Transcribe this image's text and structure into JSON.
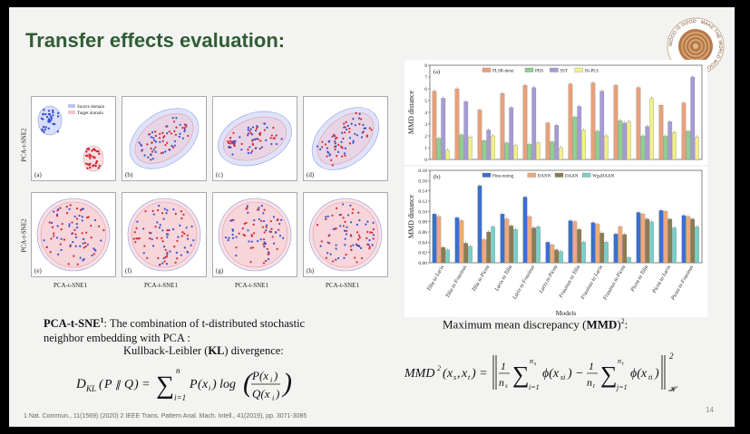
{
  "slide": {
    "title": "Transfer effects evaluation:",
    "page_number": "14",
    "footnote": "1 Nat. Commun., 11(1569) (2020)     2 IEEE Trans. Pattern Anal. Mach. Intell., 41(2019), pp. 3071-3085",
    "logo_text": "WOOD IS GOOD · MAKE THE WORLD WOOD DAY"
  },
  "tsne": {
    "y_label": "PCA-t-SNE2",
    "x_label": "PCA-t-SNE1",
    "legend": [
      "Source domain",
      "Target domain"
    ],
    "panels": [
      "(a)",
      "(b)",
      "(c)",
      "(d)",
      "(e)",
      "(f)",
      "(g)",
      "(h)"
    ],
    "colors": {
      "source": "#3b4fd1",
      "target": "#d8262f",
      "ellipse_source": "#b9c2f2",
      "ellipse_target": "#f2c4cc"
    }
  },
  "text": {
    "pca_head": "PCA-t-SNE",
    "pca_sup": "1",
    "pca_body": ": The combination of t-distributed stochastic neighbor embedding with PCA :",
    "kl_label_pre": "Kullback-Leibler (",
    "kl_label_bold": "KL",
    "kl_label_post": ") divergence:",
    "mmd_label_pre": "Maximum mean discrepancy (",
    "mmd_label_bold": "MMD",
    "mmd_label_post": ")",
    "mmd_sup": "2",
    "mmd_colon": ":"
  },
  "chart_data": [
    {
      "type": "bar",
      "panel": "(a)",
      "ylabel": "MMD distance",
      "ylim": [
        0,
        8
      ],
      "yticks": [
        "0",
        "1",
        "2",
        "3",
        "4",
        "5",
        "6",
        "7",
        "8"
      ],
      "series": [
        {
          "name": "PLSR-detui",
          "color": "#e8a07a",
          "values": [
            5.8,
            6.0,
            4.2,
            5.6,
            6.3,
            3.1,
            6.4,
            6.5,
            6.3,
            6.1,
            4.6,
            4.8
          ]
        },
        {
          "name": "PDS",
          "color": "#8ecf8e",
          "values": [
            1.8,
            2.1,
            1.6,
            1.4,
            1.3,
            1.5,
            3.6,
            2.4,
            3.3,
            2.0,
            2.0,
            2.4
          ]
        },
        {
          "name": "SST",
          "color": "#a79bd6",
          "values": [
            5.2,
            4.9,
            2.5,
            4.4,
            6.1,
            2.9,
            4.5,
            5.8,
            3.1,
            2.8,
            3.2,
            7.0
          ]
        },
        {
          "name": "Di-PLS",
          "color": "#f2f08a",
          "values": [
            0.8,
            1.9,
            2.0,
            1.2,
            1.4,
            1.0,
            2.5,
            2.0,
            3.2,
            5.2,
            2.3,
            1.9
          ]
        }
      ]
    },
    {
      "type": "bar",
      "panel": "(b)",
      "ylabel": "MMD distance",
      "xlabel": "Models",
      "ylim": [
        0,
        0.18
      ],
      "yticks": [
        "0.00",
        "0.02",
        "0.04",
        "0.06",
        "0.08",
        "0.10",
        "0.12",
        "0.14",
        "0.16",
        "0.18"
      ],
      "categories": [
        "Tilia to Larix",
        "Tilia to Fraxinus",
        "Tilia to Picea",
        "Larix to Tilia",
        "Larix to Fraxinus",
        "Larix to Picea",
        "Fraxinus to Tilia",
        "Fraxinus to Larix",
        "Fraxinus to Picea",
        "Picea to Tilia",
        "Picea to Larix",
        "Picea to Fraxinus"
      ],
      "series": [
        {
          "name": "Fine-tuning",
          "color": "#3b6fd1",
          "values": [
            0.095,
            0.088,
            0.15,
            0.095,
            0.128,
            0.04,
            0.082,
            0.078,
            0.056,
            0.098,
            0.102,
            0.092
          ]
        },
        {
          "name": "DANN",
          "color": "#f0a878",
          "values": [
            0.09,
            0.082,
            0.045,
            0.085,
            0.09,
            0.035,
            0.08,
            0.075,
            0.07,
            0.095,
            0.1,
            0.09
          ]
        },
        {
          "name": "DAAN",
          "color": "#8c7a52",
          "values": [
            0.03,
            0.038,
            0.06,
            0.072,
            0.068,
            0.025,
            0.065,
            0.058,
            0.055,
            0.085,
            0.085,
            0.085
          ]
        },
        {
          "name": "WgaDAAN",
          "color": "#7ad0c8",
          "values": [
            0.025,
            0.032,
            0.07,
            0.065,
            0.07,
            0.022,
            0.04,
            0.04,
            0.01,
            0.08,
            0.068,
            0.07
          ]
        }
      ]
    }
  ]
}
